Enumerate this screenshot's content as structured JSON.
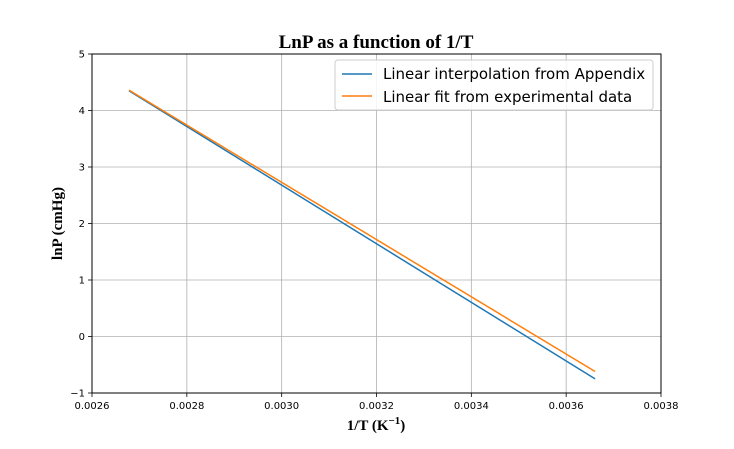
{
  "chart_data": {
    "type": "line",
    "title": "LnP as a function of 1/T",
    "xlabel_base": "1/T (K",
    "xlabel_sup": "−1",
    "xlabel_tail": ")",
    "ylabel": "lnP (cmHg)",
    "xlim": [
      0.0026,
      0.0038
    ],
    "ylim": [
      -1,
      5
    ],
    "x_ticks": [
      0.0026,
      0.0028,
      0.003,
      0.0032,
      0.0034,
      0.0036,
      0.0038
    ],
    "x_tick_labels": [
      "0.0026",
      "0.0028",
      "0.0030",
      "0.0032",
      "0.0034",
      "0.0036",
      "0.0038"
    ],
    "y_ticks": [
      -1,
      0,
      1,
      2,
      3,
      4,
      5
    ],
    "y_tick_labels": [
      "−1",
      "0",
      "1",
      "2",
      "3",
      "4",
      "5"
    ],
    "grid": true,
    "legend_position": "top-right",
    "series": [
      {
        "name": "Linear interpolation from Appendix",
        "color": "#1f77b4",
        "x": [
          0.002678,
          0.003661
        ],
        "y": [
          4.35,
          -0.75
        ]
      },
      {
        "name": "Linear fit from experimental data",
        "color": "#ff7f0e",
        "x": [
          0.002678,
          0.003661
        ],
        "y": [
          4.36,
          -0.62
        ]
      }
    ]
  }
}
